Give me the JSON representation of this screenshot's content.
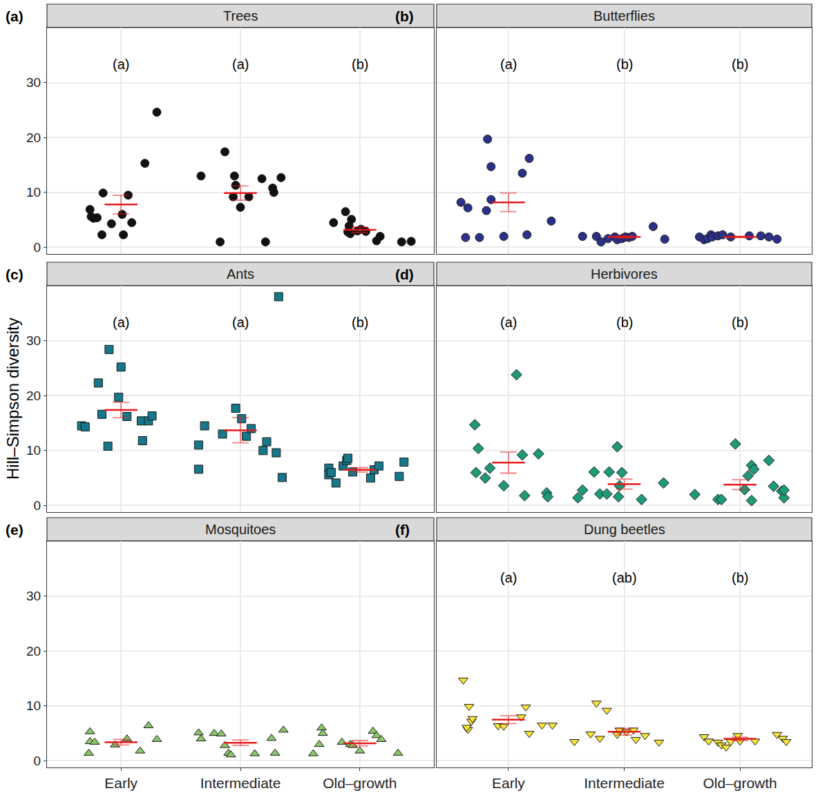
{
  "chart_data": [
    {
      "type": "scatter",
      "panel": "(a)",
      "title": "Trees",
      "tick_labels": "y",
      "grid": true,
      "xlim": [
        -0.62,
        2.62
      ],
      "xticks": [
        {
          "value": 0,
          "label": "Early"
        },
        {
          "value": 1,
          "label": "Intermediate"
        },
        {
          "value": 2,
          "label": "Old–growth"
        }
      ],
      "ylim": [
        -1.2,
        40
      ],
      "yticks": [
        0,
        10,
        20,
        30
      ],
      "points": {
        "color": "#111111",
        "marker": "circle",
        "x": [
          -0.26,
          -0.25,
          -0.23,
          -0.2,
          -0.16,
          -0.15,
          -0.08,
          0.02,
          0.01,
          0.06,
          0.09,
          0.2,
          0.3,
          0.67,
          0.83,
          0.87,
          0.95,
          0.94,
          0.96,
          1.0,
          1.07,
          1.18,
          1.21,
          1.27,
          1.28,
          1.34,
          1.78,
          1.88,
          1.93,
          1.91,
          1.92,
          1.9,
          1.98,
          2.05,
          2.01,
          2.14,
          2.17,
          2.35,
          2.43
        ],
        "y": [
          6.9,
          5.6,
          5.3,
          5.4,
          2.3,
          9.9,
          4.3,
          2.3,
          6.0,
          9.5,
          4.5,
          15.3,
          24.6,
          13.0,
          1.0,
          17.4,
          13.0,
          9.2,
          11.3,
          7.3,
          9.2,
          12.5,
          1.0,
          10.8,
          10.0,
          12.7,
          4.5,
          6.5,
          5.1,
          3.9,
          2.5,
          2.8,
          3.0,
          2.9,
          3.3,
          1.2,
          2.0,
          1.0,
          1.1
        ]
      },
      "summary": {
        "color": "#e41a1c",
        "x": [
          0,
          1,
          2
        ],
        "mean": [
          7.8,
          9.9,
          3.2
        ],
        "se": [
          1.7,
          1.3,
          0.5
        ]
      },
      "annotations": [
        {
          "x": 0,
          "y": 33.4,
          "text": "(a)"
        },
        {
          "x": 1,
          "y": 33.4,
          "text": "(a)"
        },
        {
          "x": 2,
          "y": 33.4,
          "text": "(b)"
        }
      ]
    },
    {
      "type": "scatter",
      "panel": "(b)",
      "title": "Butterflies",
      "tick_labels": false,
      "grid": true,
      "xlim": [
        -0.62,
        2.62
      ],
      "xticks": [
        {
          "value": 0,
          "label": "Early"
        },
        {
          "value": 1,
          "label": "Intermediate"
        },
        {
          "value": 2,
          "label": "Old–growth"
        }
      ],
      "ylim": [
        -1.2,
        40
      ],
      "yticks": [
        0,
        10,
        20,
        30
      ],
      "points": {
        "color": "#2b3088",
        "marker": "circle",
        "x": [
          -0.41,
          -0.35,
          -0.37,
          -0.25,
          -0.19,
          -0.18,
          -0.15,
          -0.15,
          -0.04,
          0.12,
          0.16,
          0.18,
          0.37,
          0.64,
          0.76,
          0.8,
          0.86,
          0.92,
          0.94,
          0.98,
          1.01,
          1.04,
          1.07,
          1.25,
          1.35,
          1.65,
          1.69,
          1.72,
          1.75,
          1.76,
          1.81,
          1.85,
          1.92,
          2.08,
          2.18,
          2.25,
          2.32
        ],
        "y": [
          8.2,
          7.2,
          1.8,
          1.8,
          6.7,
          19.7,
          14.7,
          8.7,
          2.0,
          13.5,
          2.3,
          16.2,
          4.8,
          2.0,
          2.0,
          1.0,
          1.6,
          1.9,
          1.4,
          1.6,
          1.9,
          1.8,
          2.0,
          3.8,
          1.5,
          1.9,
          1.4,
          1.6,
          2.3,
          1.9,
          2.1,
          2.3,
          1.9,
          2.1,
          2.1,
          1.9,
          1.5
        ]
      },
      "summary": {
        "color": "#e41a1c",
        "x": [
          0,
          1,
          2
        ],
        "mean": [
          8.2,
          1.9,
          1.9
        ],
        "se": [
          1.7,
          0.2,
          0.1
        ]
      },
      "annotations": [
        {
          "x": 0,
          "y": 33.4,
          "text": "(a)"
        },
        {
          "x": 1,
          "y": 33.4,
          "text": "(b)"
        },
        {
          "x": 2,
          "y": 33.4,
          "text": "(b)"
        }
      ]
    },
    {
      "type": "scatter",
      "panel": "(c)",
      "title": "Ants",
      "tick_labels": "y",
      "grid": true,
      "ylabel": "Hill–Simpson diversity",
      "xlim": [
        -0.62,
        2.62
      ],
      "xticks": [
        {
          "value": 0,
          "label": "Early"
        },
        {
          "value": 1,
          "label": "Intermediate"
        },
        {
          "value": 2,
          "label": "Old–growth"
        }
      ],
      "ylim": [
        -1.2,
        40
      ],
      "yticks": [
        0,
        10,
        20,
        30
      ],
      "points": {
        "color": "#16788a",
        "marker": "square",
        "x": [
          -0.33,
          -0.3,
          -0.19,
          -0.16,
          -0.11,
          -0.1,
          -0.02,
          0.0,
          0.05,
          0.17,
          0.18,
          0.23,
          0.26,
          0.65,
          0.65,
          0.7,
          0.85,
          0.96,
          1.01,
          1.05,
          1.09,
          1.19,
          1.22,
          1.3,
          1.32,
          1.35,
          1.74,
          1.74,
          1.76,
          1.8,
          1.86,
          1.89,
          1.9,
          1.94,
          2.09,
          2.12,
          2.16,
          2.33,
          2.37
        ],
        "y": [
          14.5,
          14.3,
          22.3,
          16.6,
          10.8,
          28.4,
          19.7,
          25.2,
          16.2,
          15.4,
          11.8,
          15.4,
          16.3,
          11.0,
          6.6,
          14.5,
          13.0,
          17.7,
          15.8,
          12.6,
          14.0,
          10.0,
          11.6,
          9.6,
          38.0,
          5.1,
          6.8,
          5.6,
          6.0,
          4.1,
          7.2,
          8.2,
          8.6,
          6.1,
          5.0,
          6.5,
          7.2,
          5.3,
          7.9
        ]
      },
      "summary": {
        "color": "#e41a1c",
        "x": [
          0,
          1,
          2
        ],
        "mean": [
          17.4,
          13.7,
          6.5
        ],
        "se": [
          1.4,
          2.3,
          0.4
        ]
      },
      "annotations": [
        {
          "x": 0,
          "y": 33.4,
          "text": "(a)"
        },
        {
          "x": 1,
          "y": 33.4,
          "text": "(a)"
        },
        {
          "x": 2,
          "y": 33.4,
          "text": "(b)"
        }
      ]
    },
    {
      "type": "scatter",
      "panel": "(d)",
      "title": "Herbivores",
      "tick_labels": false,
      "grid": true,
      "xlim": [
        -0.62,
        2.62
      ],
      "xticks": [
        {
          "value": 0,
          "label": "Early"
        },
        {
          "value": 1,
          "label": "Intermediate"
        },
        {
          "value": 2,
          "label": "Old–growth"
        }
      ],
      "ylim": [
        -1.2,
        40
      ],
      "yticks": [
        0,
        10,
        20,
        30
      ],
      "points": {
        "color": "#1e9a78",
        "marker": "diamond",
        "x": [
          -0.29,
          -0.26,
          -0.28,
          -0.2,
          -0.16,
          -0.04,
          0.07,
          0.12,
          0.14,
          0.26,
          0.33,
          0.34,
          0.6,
          0.64,
          0.74,
          0.79,
          0.85,
          0.87,
          0.94,
          0.95,
          0.96,
          0.98,
          1.15,
          1.34,
          1.61,
          1.81,
          1.84,
          1.96,
          2.04,
          2.07,
          2.1,
          2.12,
          2.1,
          2.25,
          2.29,
          2.36,
          2.38,
          2.38
        ],
        "y": [
          14.7,
          10.4,
          6.0,
          5.0,
          6.8,
          3.6,
          23.8,
          9.2,
          1.8,
          9.4,
          2.3,
          1.6,
          1.4,
          2.8,
          6.1,
          2.1,
          2.1,
          6.1,
          10.7,
          1.6,
          3.6,
          6.0,
          1.1,
          4.1,
          2.0,
          1.1,
          1.1,
          11.2,
          2.9,
          5.4,
          7.3,
          6.6,
          0.9,
          8.2,
          3.5,
          2.6,
          1.4,
          2.8
        ]
      },
      "summary": {
        "color": "#e41a1c",
        "x": [
          0,
          1,
          2
        ],
        "mean": [
          7.8,
          3.9,
          3.8
        ],
        "se": [
          1.9,
          0.9,
          0.9
        ]
      },
      "annotations": [
        {
          "x": 0,
          "y": 33.4,
          "text": "(a)"
        },
        {
          "x": 1,
          "y": 33.4,
          "text": "(b)"
        },
        {
          "x": 2,
          "y": 33.4,
          "text": "(b)"
        }
      ]
    },
    {
      "type": "scatter",
      "panel": "(e)",
      "title": "Mosquitoes",
      "grid": true,
      "xlim": [
        -0.62,
        2.62
      ],
      "xticks": [
        {
          "value": 0,
          "label": "Early"
        },
        {
          "value": 1,
          "label": "Intermediate"
        },
        {
          "value": 2,
          "label": "Old–growth"
        }
      ],
      "ylim": [
        -1.2,
        40
      ],
      "yticks": [
        0,
        10,
        20,
        30
      ],
      "points": {
        "color": "#8cc66b",
        "marker": "triangle-up",
        "x": [
          -0.26,
          -0.26,
          -0.27,
          -0.22,
          -0.05,
          0.05,
          0.16,
          0.23,
          0.3,
          0.65,
          0.67,
          0.78,
          0.84,
          0.87,
          0.9,
          0.92,
          1.12,
          1.26,
          1.29,
          1.36,
          1.61,
          1.66,
          1.68,
          1.69,
          1.85,
          1.92,
          1.94,
          2.0,
          2.11,
          2.14,
          2.18,
          2.32
        ],
        "y": [
          5.3,
          3.5,
          1.4,
          3.4,
          2.9,
          4.0,
          1.8,
          6.4,
          3.9,
          5.1,
          4.0,
          5.0,
          4.9,
          2.8,
          1.4,
          1.1,
          1.3,
          4.1,
          1.4,
          5.6,
          1.3,
          3.0,
          6.0,
          5.0,
          3.4,
          3.0,
          2.8,
          1.8,
          5.4,
          4.6,
          3.9,
          1.4
        ]
      },
      "summary": {
        "color": "#e41a1c",
        "x": [
          0,
          1,
          2
        ],
        "mean": [
          3.4,
          3.3,
          3.2
        ],
        "se": [
          0.5,
          0.5,
          0.5
        ]
      },
      "annotations": []
    },
    {
      "type": "scatter",
      "panel": "(f)",
      "title": "Dung beetles",
      "tick_labels": "x",
      "grid": true,
      "xlim": [
        -0.62,
        2.62
      ],
      "xticks": [
        {
          "value": 0,
          "label": "Early"
        },
        {
          "value": 1,
          "label": "Intermediate"
        },
        {
          "value": 2,
          "label": "Old–growth"
        }
      ],
      "ylim": [
        -1.2,
        40
      ],
      "yticks": [
        0,
        10,
        20,
        30
      ],
      "points": {
        "color": "#f7e43a",
        "marker": "triangle-down",
        "x": [
          -0.39,
          -0.34,
          -0.32,
          -0.35,
          -0.36,
          -0.31,
          -0.09,
          -0.04,
          0.11,
          0.15,
          0.18,
          0.29,
          0.38,
          0.57,
          0.71,
          0.76,
          0.79,
          0.85,
          0.94,
          0.96,
          1.02,
          1.08,
          1.1,
          1.18,
          1.3,
          1.69,
          1.73,
          1.81,
          1.84,
          1.88,
          1.92,
          1.98,
          2.0,
          2.13,
          2.32,
          2.37,
          2.4
        ],
        "y": [
          14.7,
          9.9,
          7.2,
          5.7,
          6.1,
          7.7,
          6.4,
          6.3,
          8.0,
          9.8,
          5.0,
          6.5,
          6.5,
          3.5,
          4.9,
          10.5,
          4.1,
          9.2,
          4.8,
          5.6,
          5.3,
          5.6,
          3.9,
          4.6,
          3.4,
          4.4,
          3.6,
          3.4,
          2.9,
          2.5,
          3.5,
          4.6,
          3.6,
          3.6,
          4.8,
          4.1,
          3.5
        ]
      },
      "summary": {
        "color": "#e41a1c",
        "x": [
          0,
          1,
          2
        ],
        "mean": [
          7.5,
          5.3,
          4.0
        ],
        "se": [
          0.7,
          0.6,
          0.3
        ]
      },
      "annotations": [
        {
          "x": 0,
          "y": 33.4,
          "text": "(a)"
        },
        {
          "x": 1,
          "y": 33.4,
          "text": "(ab)"
        },
        {
          "x": 2,
          "y": 33.4,
          "text": "(b)"
        }
      ]
    }
  ]
}
